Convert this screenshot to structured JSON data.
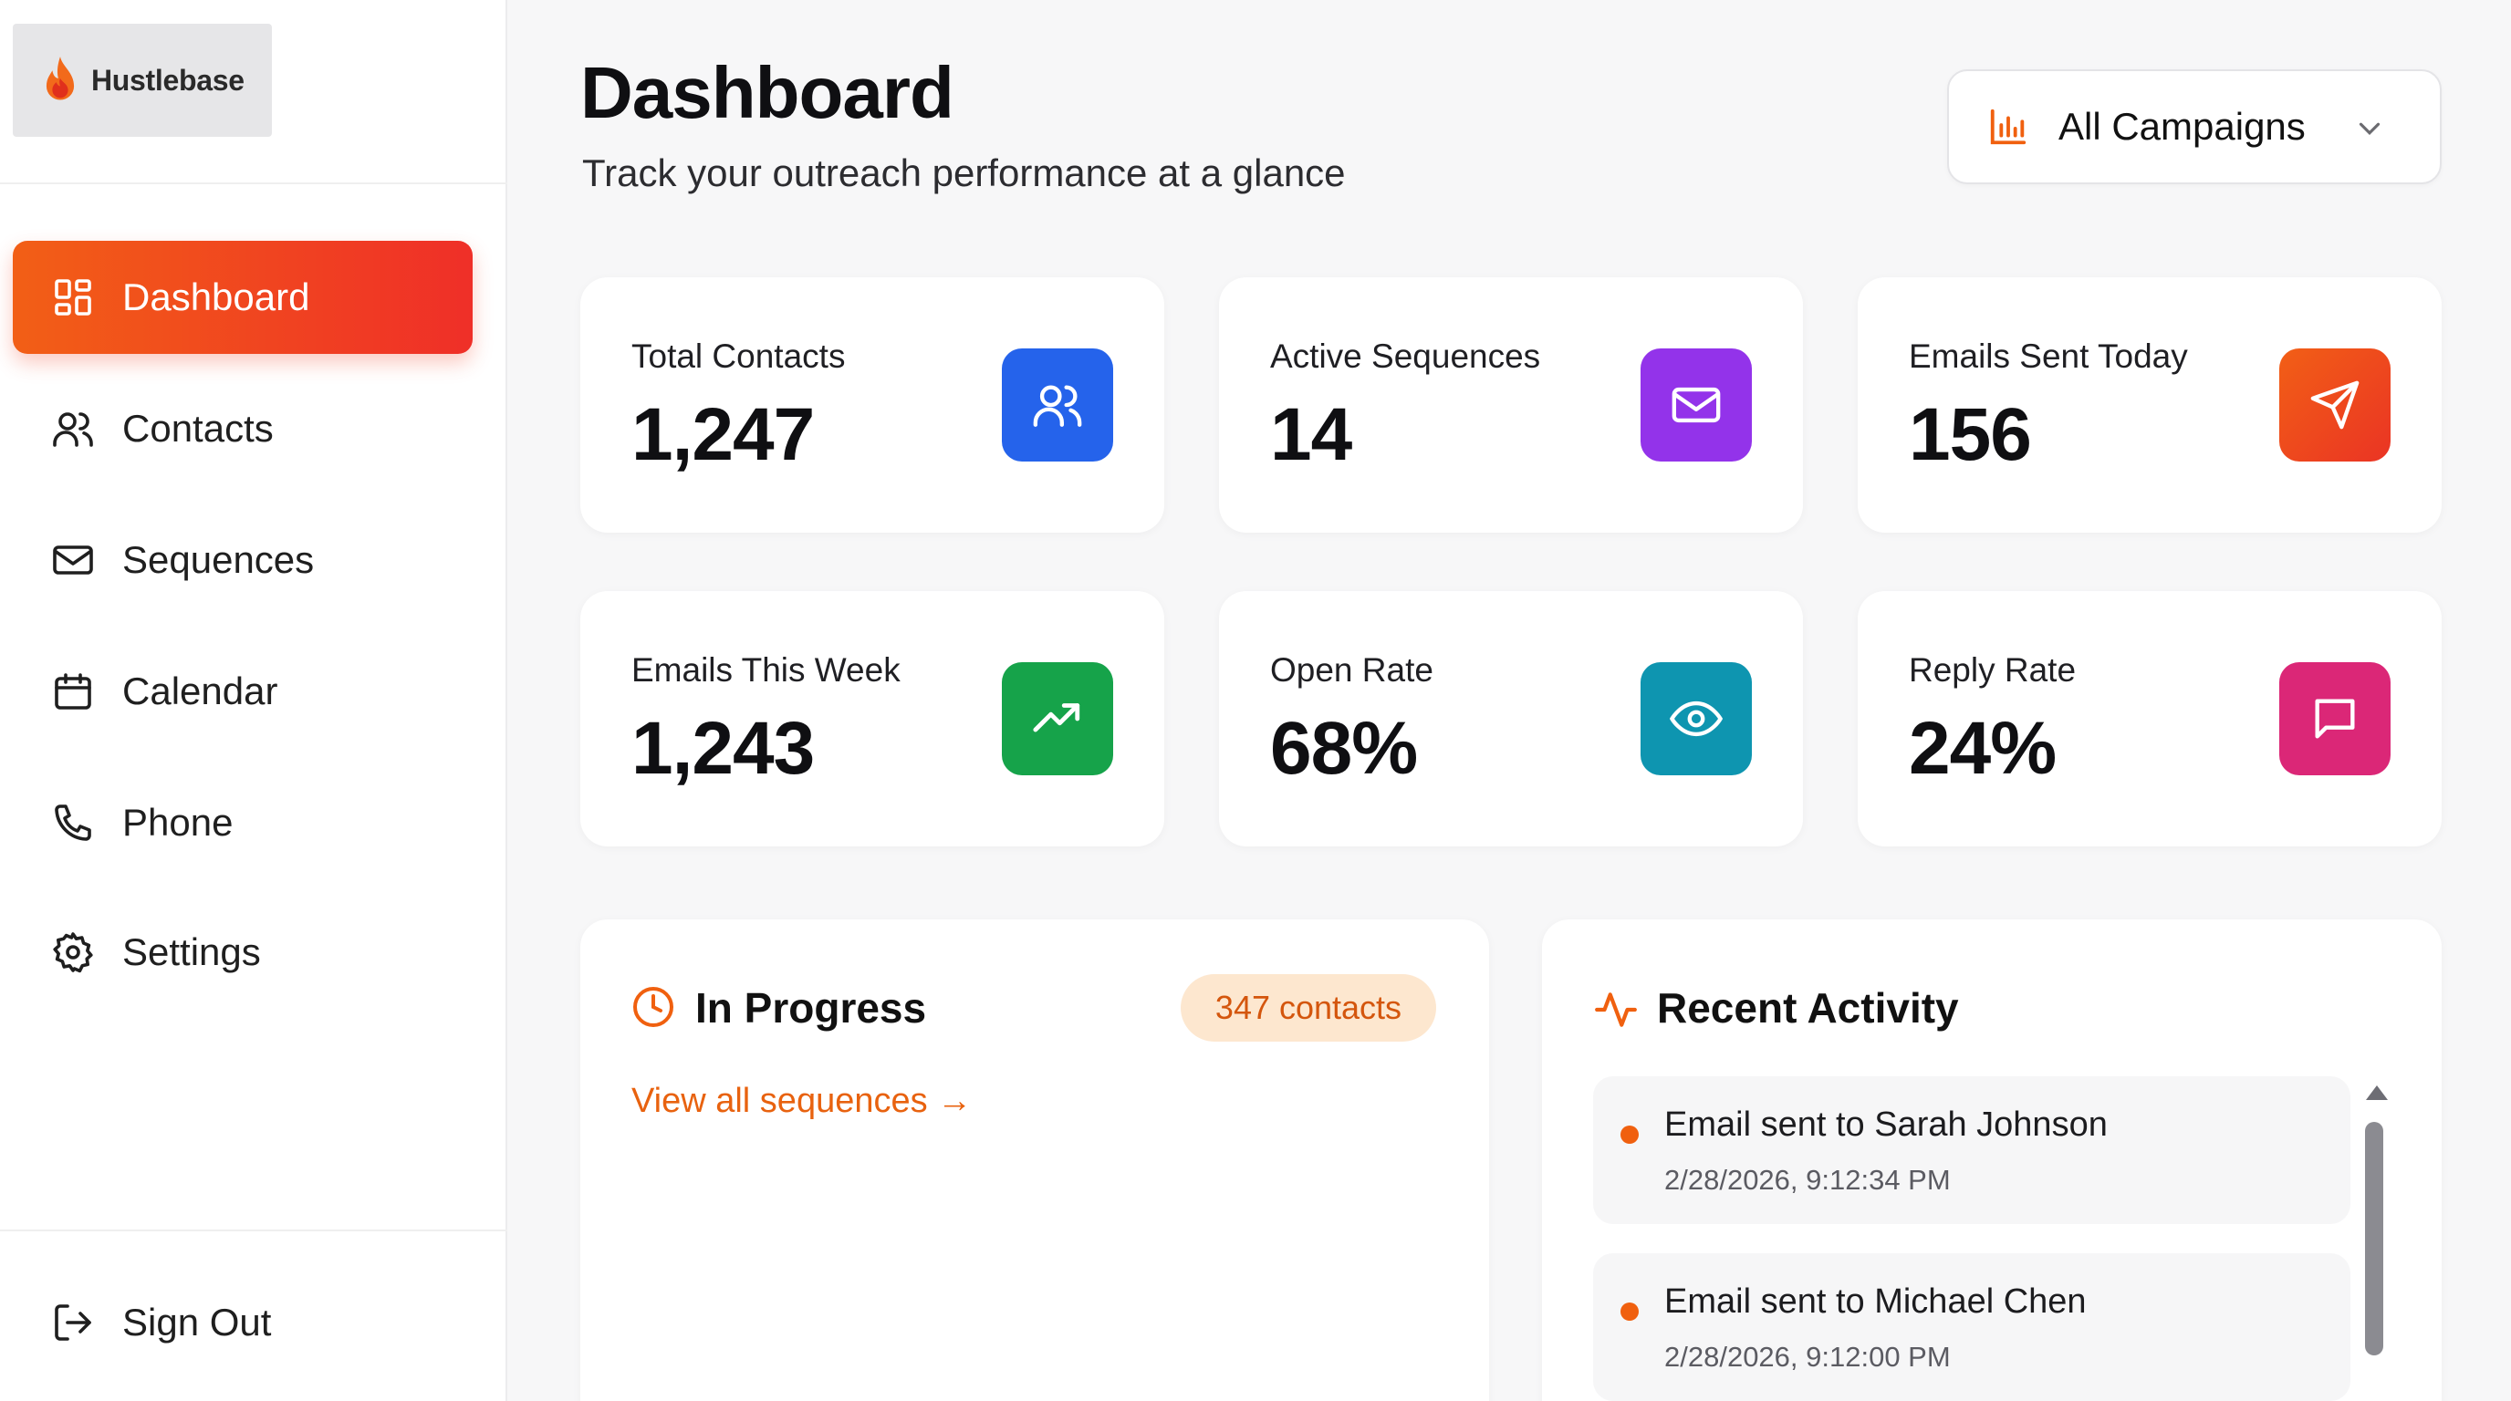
{
  "brand": {
    "name": "Hustlebase",
    "logo_icon": "flame-icon"
  },
  "sidebar": {
    "items": [
      {
        "label": "Dashboard",
        "icon": "grid-icon",
        "active": true
      },
      {
        "label": "Contacts",
        "icon": "users-icon"
      },
      {
        "label": "Sequences",
        "icon": "mail-icon"
      },
      {
        "label": "Calendar",
        "icon": "calendar-icon"
      },
      {
        "label": "Phone",
        "icon": "phone-icon"
      },
      {
        "label": "Settings",
        "icon": "gear-icon"
      }
    ],
    "sign_out": {
      "label": "Sign Out",
      "icon": "logout-icon"
    },
    "active_color": "#f04a1c"
  },
  "header": {
    "title": "Dashboard",
    "subtitle": "Track your outreach performance at a glance",
    "campaign_filter": {
      "selected": "All Campaigns",
      "icon": "bar-chart-icon",
      "accent": "#f0600f"
    }
  },
  "stats": [
    {
      "label": "Total Contacts",
      "value": "1,247",
      "icon": "users-icon",
      "color": "#2563eb"
    },
    {
      "label": "Active Sequences",
      "value": "14",
      "icon": "mail-icon",
      "color": "#9333ea"
    },
    {
      "label": "Emails Sent Today",
      "value": "156",
      "icon": "send-icon",
      "color": "#ef4a1a"
    },
    {
      "label": "Emails This Week",
      "value": "1,243",
      "icon": "trending-up-icon",
      "color": "#16a34a"
    },
    {
      "label": "Open Rate",
      "value": "68%",
      "icon": "eye-icon",
      "color": "#0e95b0"
    },
    {
      "label": "Reply Rate",
      "value": "24%",
      "icon": "message-icon",
      "color": "#db2777"
    }
  ],
  "in_progress": {
    "title": "In Progress",
    "icon": "clock-icon",
    "badge": "347 contacts",
    "link": "View all sequences →"
  },
  "recent_activity": {
    "title": "Recent Activity",
    "icon": "activity-icon",
    "items": [
      {
        "text": "Email sent to Sarah Johnson",
        "time": "2/28/2026, 9:12:34 PM"
      },
      {
        "text": "Email sent to Michael Chen",
        "time": "2/28/2026, 9:12:00 PM"
      }
    ]
  }
}
